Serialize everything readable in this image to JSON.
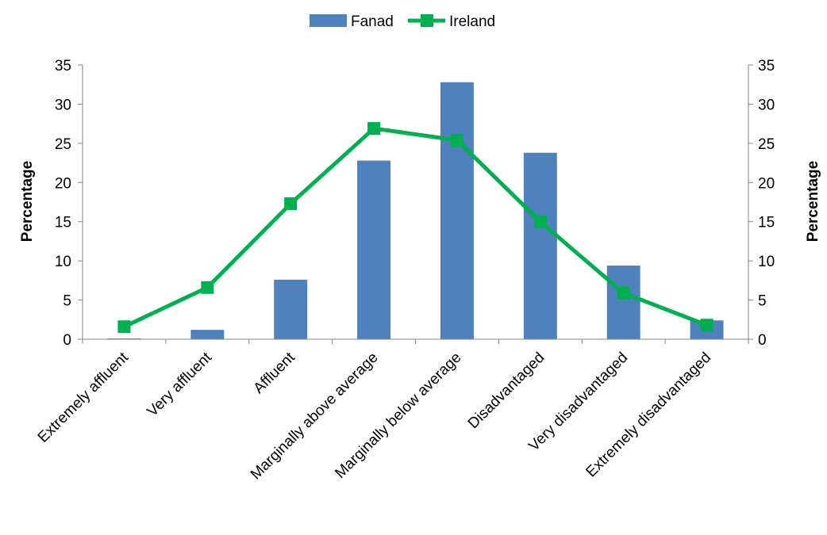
{
  "chart_data": {
    "type": "bar",
    "categories": [
      "Extremely affluent",
      "Very affluent",
      "Affluent",
      "Marginally above average",
      "Marginally below average",
      "Disadvantaged",
      "Very disadvantaged",
      "Extremely disadvantaged"
    ],
    "series": [
      {
        "name": "Fanad",
        "type": "bar",
        "color": "#4f81bd",
        "values": [
          0.1,
          1.2,
          7.6,
          22.8,
          32.8,
          23.8,
          9.4,
          2.4
        ]
      },
      {
        "name": "Ireland",
        "type": "line",
        "color": "#00b050",
        "marker": "square",
        "values": [
          1.6,
          6.6,
          17.3,
          26.9,
          25.4,
          15.0,
          5.9,
          1.8
        ]
      }
    ],
    "title": "",
    "xlabel": "",
    "ylabel": "Percentage",
    "y2label": "Percentage",
    "ylim": [
      0,
      35
    ],
    "y2lim": [
      0,
      35
    ],
    "yticks": [
      0,
      5,
      10,
      15,
      20,
      25,
      30,
      35
    ],
    "grid": false,
    "legend": "top-center"
  }
}
